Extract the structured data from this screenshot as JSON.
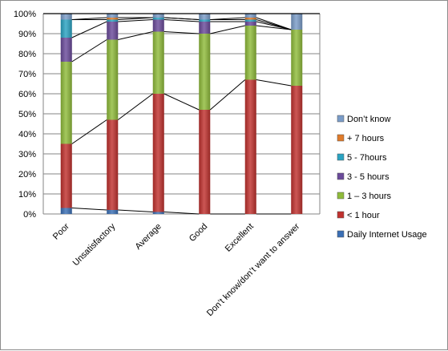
{
  "chart_data": {
    "type": "bar",
    "stacked": true,
    "percent": true,
    "categories": [
      "Poor",
      "Unsatisfactory",
      "Average",
      "Good",
      "Excellent",
      "Don’t know/don’t want to answer"
    ],
    "y_ticks": [
      "0%",
      "10%",
      "20%",
      "30%",
      "40%",
      "50%",
      "60%",
      "70%",
      "80%",
      "90%",
      "100%"
    ],
    "ylim": [
      0,
      100
    ],
    "grid": true,
    "legend_position": "right",
    "series": [
      {
        "name": "Daily Internet Usage",
        "color": "#3a6fb5",
        "values": [
          3,
          2,
          1,
          0,
          0,
          0
        ]
      },
      {
        "name": "< 1 hour",
        "color": "#c0312e",
        "values": [
          32,
          45,
          59,
          52,
          67,
          64
        ]
      },
      {
        "name": "1 – 3 hours",
        "color": "#8fbb3a",
        "values": [
          41,
          40,
          31,
          38,
          27,
          28
        ]
      },
      {
        "name": "3 - 5 hours",
        "color": "#6a4a9a",
        "values": [
          12,
          9,
          6,
          6,
          2,
          0
        ]
      },
      {
        "name": "5 - 7hours",
        "color": "#2aa3c2",
        "values": [
          9,
          1,
          1,
          1,
          1,
          0
        ]
      },
      {
        "name": "+ 7 hours",
        "color": "#e07b2a",
        "values": [
          0,
          1,
          0,
          0,
          1,
          0
        ]
      },
      {
        "name": "Don’t know",
        "color": "#7a9cc8",
        "values": [
          3,
          2,
          2,
          3,
          2,
          8
        ]
      }
    ]
  }
}
